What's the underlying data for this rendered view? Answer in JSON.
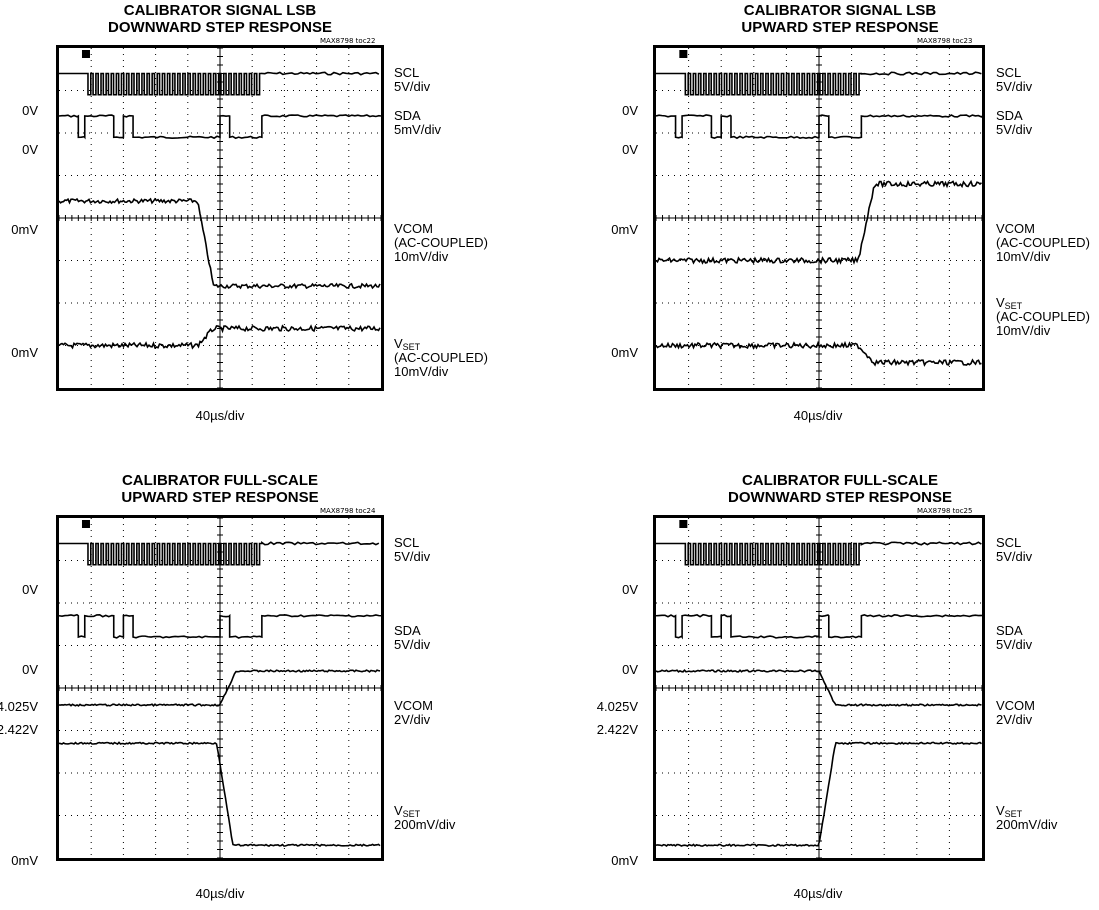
{
  "chart_data": [
    {
      "type": "line",
      "title_lines": [
        "CALIBRATOR SIGNAL LSB",
        "DOWNWARD STEP RESPONSE"
      ],
      "tag": "MAX8798 toc22",
      "xlabel": "40µs/div",
      "x_divisions": 10,
      "y_divisions": 8,
      "traces": [
        {
          "name": "SCL",
          "scale": "5V/div",
          "ground_label": "0V",
          "kind": "clock",
          "level_div": 0.6,
          "ground_div": 1.0
        },
        {
          "name": "SDA",
          "scale": "5mV/div",
          "ground_label": "0V",
          "kind": "data",
          "level_div": 1.6,
          "ground_div": 2.2
        },
        {
          "name": "VCOM",
          "scale_lines": [
            "(AC-COUPLED)",
            "10mV/div"
          ],
          "ground_label": "0mV",
          "kind": "step",
          "before_div": 3.6,
          "after_div": 5.6,
          "step_at_div": 4.3,
          "noise": 0.05
        },
        {
          "name": "V",
          "sub": "SET",
          "scale_lines": [
            "(AC-COUPLED)",
            "10mV/div"
          ],
          "ground_label": "0mV",
          "kind": "step",
          "before_div": 7.0,
          "after_div": 6.6,
          "step_at_div": 4.3,
          "noise": 0.06
        }
      ]
    },
    {
      "type": "line",
      "title_lines": [
        "CALIBRATOR SIGNAL LSB",
        "UPWARD STEP RESPONSE"
      ],
      "tag": "MAX8798 toc23",
      "xlabel": "40µs/div",
      "x_divisions": 10,
      "y_divisions": 8,
      "traces": [
        {
          "name": "SCL",
          "scale": "5V/div",
          "ground_label": "0V",
          "kind": "clock",
          "level_div": 0.6,
          "ground_div": 1.0
        },
        {
          "name": "SDA",
          "scale": "5V/div",
          "ground_label": "0V",
          "kind": "data",
          "level_div": 1.6,
          "ground_div": 2.2
        },
        {
          "name": "VCOM",
          "scale_lines": [
            "(AC-COUPLED)",
            "10mV/div"
          ],
          "ground_label": "0mV",
          "kind": "step",
          "before_div": 5.0,
          "after_div": 3.2,
          "step_at_div": 6.2,
          "noise": 0.06
        },
        {
          "name": "V",
          "sub": "SET",
          "scale_lines": [
            "(AC-COUPLED)",
            "10mV/div"
          ],
          "ground_label": "0mV",
          "kind": "step",
          "before_div": 7.0,
          "after_div": 7.4,
          "step_at_div": 6.2,
          "noise": 0.06
        }
      ]
    },
    {
      "type": "line",
      "title_lines": [
        "CALIBRATOR FULL-SCALE",
        "UPWARD STEP RESPONSE"
      ],
      "tag": "MAX8798 toc24",
      "xlabel": "40µs/div",
      "x_divisions": 10,
      "y_divisions": 8,
      "traces": [
        {
          "name": "SCL",
          "scale": "5V/div",
          "ground_label": "0V",
          "kind": "clock",
          "level_div": 0.6,
          "ground_div": 1.0
        },
        {
          "name": "SDA",
          "scale": "5V/div",
          "ground_label": "0V",
          "kind": "data",
          "level_div": 2.3,
          "ground_div": 3.0
        },
        {
          "name": "VCOM",
          "scale": "2V/div",
          "ground_label": "4.025V",
          "ground_label2": "2.422V",
          "kind": "step",
          "before_div": 4.4,
          "after_div": 3.6,
          "step_at_div": 5.0,
          "noise": 0.02
        },
        {
          "name": "V",
          "sub": "SET",
          "scale": "200mV/div",
          "ground_label": "0mV",
          "kind": "step",
          "before_div": 5.3,
          "after_div": 7.7,
          "step_at_div": 4.9,
          "noise": 0.02
        }
      ]
    },
    {
      "type": "line",
      "title_lines": [
        "CALIBRATOR FULL-SCALE",
        "DOWNWARD STEP RESPONSE"
      ],
      "tag": "MAX8798 toc25",
      "xlabel": "40µs/div",
      "x_divisions": 10,
      "y_divisions": 8,
      "traces": [
        {
          "name": "SCL",
          "scale": "5V/div",
          "ground_label": "0V",
          "kind": "clock",
          "level_div": 0.6,
          "ground_div": 1.0
        },
        {
          "name": "SDA",
          "scale": "5V/div",
          "ground_label": "0V",
          "kind": "data",
          "level_div": 2.3,
          "ground_div": 3.0
        },
        {
          "name": "VCOM",
          "scale": "2V/div",
          "ground_label": "4.025V",
          "ground_label2": "2.422V",
          "kind": "step",
          "before_div": 3.6,
          "after_div": 4.4,
          "step_at_div": 5.0,
          "noise": 0.02
        },
        {
          "name": "V",
          "sub": "SET",
          "scale": "200mV/div",
          "ground_label": "0mV",
          "kind": "step",
          "before_div": 7.7,
          "after_div": 5.3,
          "step_at_div": 5.0,
          "noise": 0.02
        }
      ]
    }
  ]
}
